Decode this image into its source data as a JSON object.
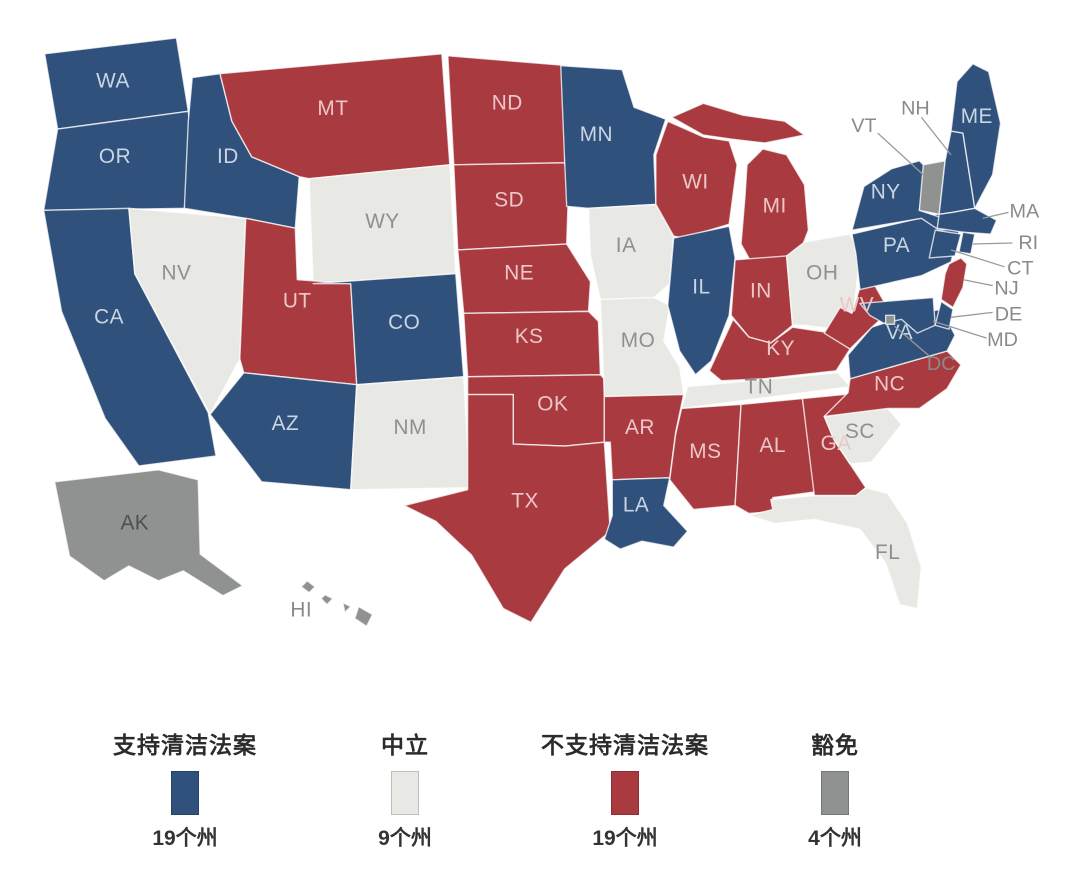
{
  "legend": {
    "items": [
      {
        "id": "support",
        "label": "支持清洁法案",
        "count": "19个州",
        "color": "#30517C"
      },
      {
        "id": "neutral",
        "label": "中立",
        "count": "9个州",
        "color": "#E8E8E4"
      },
      {
        "id": "oppose",
        "label": "不支持清洁法案",
        "count": "19个州",
        "color": "#A93B40"
      },
      {
        "id": "exempt",
        "label": "豁免",
        "count": "4个州",
        "color": "#909292"
      }
    ]
  },
  "colors": {
    "support": "#30517C",
    "neutral": "#E8E8E4",
    "oppose": "#A93B40",
    "exempt": "#909292",
    "background": "#FFFFFF",
    "label_on_support": "#C9D5E3",
    "label_on_oppose": "#EBC7C9",
    "label_on_neutral": "#8F8F8F",
    "label_on_exempt": "#4F4F4F",
    "leader_text": "#8A8A8A"
  },
  "map": {
    "states": [
      {
        "abbr": "WA",
        "category": "support"
      },
      {
        "abbr": "OR",
        "category": "support"
      },
      {
        "abbr": "CA",
        "category": "support"
      },
      {
        "abbr": "NV",
        "category": "neutral"
      },
      {
        "abbr": "ID",
        "category": "support"
      },
      {
        "abbr": "MT",
        "category": "oppose"
      },
      {
        "abbr": "WY",
        "category": "neutral"
      },
      {
        "abbr": "UT",
        "category": "oppose"
      },
      {
        "abbr": "CO",
        "category": "support"
      },
      {
        "abbr": "AZ",
        "category": "support"
      },
      {
        "abbr": "NM",
        "category": "neutral"
      },
      {
        "abbr": "ND",
        "category": "oppose"
      },
      {
        "abbr": "SD",
        "category": "oppose"
      },
      {
        "abbr": "NE",
        "category": "oppose"
      },
      {
        "abbr": "KS",
        "category": "oppose"
      },
      {
        "abbr": "OK",
        "category": "oppose"
      },
      {
        "abbr": "TX",
        "category": "oppose"
      },
      {
        "abbr": "MN",
        "category": "support"
      },
      {
        "abbr": "IA",
        "category": "neutral"
      },
      {
        "abbr": "MO",
        "category": "neutral"
      },
      {
        "abbr": "AR",
        "category": "oppose"
      },
      {
        "abbr": "LA",
        "category": "support"
      },
      {
        "abbr": "WI",
        "category": "oppose"
      },
      {
        "abbr": "IL",
        "category": "support"
      },
      {
        "abbr": "MI",
        "category": "oppose"
      },
      {
        "abbr": "IN",
        "category": "oppose"
      },
      {
        "abbr": "OH",
        "category": "neutral"
      },
      {
        "abbr": "KY",
        "category": "oppose"
      },
      {
        "abbr": "TN",
        "category": "neutral"
      },
      {
        "abbr": "MS",
        "category": "oppose"
      },
      {
        "abbr": "AL",
        "category": "oppose"
      },
      {
        "abbr": "GA",
        "category": "oppose"
      },
      {
        "abbr": "FL",
        "category": "neutral"
      },
      {
        "abbr": "SC",
        "category": "neutral"
      },
      {
        "abbr": "NC",
        "category": "oppose"
      },
      {
        "abbr": "VA",
        "category": "support"
      },
      {
        "abbr": "WV",
        "category": "oppose"
      },
      {
        "abbr": "PA",
        "category": "support"
      },
      {
        "abbr": "NY",
        "category": "support"
      },
      {
        "abbr": "VT",
        "category": "exempt"
      },
      {
        "abbr": "NH",
        "category": "support"
      },
      {
        "abbr": "ME",
        "category": "support"
      },
      {
        "abbr": "MA",
        "category": "support"
      },
      {
        "abbr": "RI",
        "category": "support"
      },
      {
        "abbr": "CT",
        "category": "support"
      },
      {
        "abbr": "NJ",
        "category": "oppose"
      },
      {
        "abbr": "DE",
        "category": "support"
      },
      {
        "abbr": "MD",
        "category": "support"
      },
      {
        "abbr": "DC",
        "category": "exempt"
      },
      {
        "abbr": "AK",
        "category": "exempt"
      },
      {
        "abbr": "HI",
        "category": "exempt"
      }
    ]
  },
  "chart_data": {
    "type": "choropleth_map",
    "region": "United States",
    "categories": [
      {
        "name": "支持清洁法案",
        "count": 19,
        "color": "#30517C",
        "states": [
          "WA",
          "OR",
          "CA",
          "ID",
          "AZ",
          "CO",
          "MN",
          "IL",
          "LA",
          "PA",
          "NY",
          "NH",
          "ME",
          "MA",
          "RI",
          "CT",
          "DE",
          "MD",
          "VA"
        ]
      },
      {
        "name": "中立",
        "count": 9,
        "color": "#E8E8E4",
        "states": [
          "NV",
          "WY",
          "NM",
          "IA",
          "MO",
          "OH",
          "TN",
          "SC",
          "FL"
        ]
      },
      {
        "name": "不支持清洁法案",
        "count": 19,
        "color": "#A93B40",
        "states": [
          "MT",
          "ND",
          "SD",
          "NE",
          "KS",
          "UT",
          "OK",
          "TX",
          "WI",
          "MI",
          "IN",
          "KY",
          "WV",
          "NC",
          "AR",
          "MS",
          "AL",
          "GA",
          "NJ"
        ]
      },
      {
        "name": "豁免",
        "count": 4,
        "color": "#909292",
        "states": [
          "AK",
          "HI",
          "VT",
          "DC"
        ]
      }
    ]
  }
}
